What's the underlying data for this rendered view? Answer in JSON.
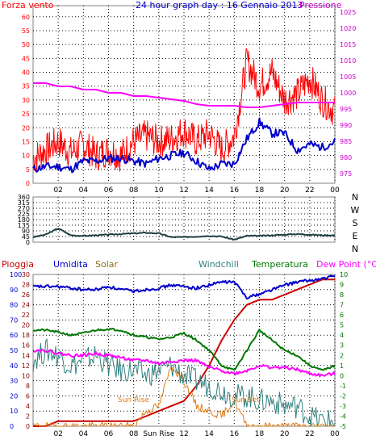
{
  "colors": {
    "wind": "#ff0000",
    "wind_dark": "#0000cc",
    "pressure": "#ff00ff",
    "dir": "#1f3f3f",
    "rain": "#cc0000",
    "humidity": "#0000cc",
    "solar": "#e07a10",
    "windchill": "#2f7f7f",
    "temp": "#007700",
    "dewpoint": "#ff00ff",
    "pressure_axis": "#cc00cc",
    "grid": "#000000",
    "frame": "#808080"
  },
  "chart_data": [
    {
      "type": "line",
      "title": "24 hour graph day : 16 Gennaio 2013",
      "left_label": "Forza vento",
      "right_label": "Pressione",
      "x_ticks": [
        "02",
        "04",
        "06",
        "08",
        "10",
        "12",
        "14",
        "16",
        "18",
        "20",
        "22",
        "00"
      ],
      "x": [
        0,
        1,
        2,
        3,
        4,
        5,
        6,
        7,
        8,
        9,
        10,
        11,
        12,
        13,
        14,
        15,
        16,
        17,
        18,
        19,
        20,
        21,
        22,
        23,
        24
      ],
      "ylim_left": [
        0,
        64
      ],
      "y_ticks_left": [
        0,
        5,
        10,
        15,
        20,
        25,
        30,
        35,
        40,
        45,
        50,
        55,
        60
      ],
      "ylim_right": [
        972,
        1027
      ],
      "y_ticks_right": [
        975,
        980,
        985,
        990,
        995,
        1000,
        1005,
        1010,
        1015,
        1020,
        1025
      ],
      "series": [
        {
          "axis": "left",
          "values": [
            9,
            12,
            15,
            11,
            14,
            10,
            12,
            10,
            15,
            17,
            15,
            16,
            19,
            15,
            18,
            12,
            17,
            44,
            35,
            40,
            30,
            32,
            38,
            30,
            26
          ]
        },
        {
          "axis": "left",
          "values": [
            5,
            6,
            6,
            5,
            8,
            8,
            9,
            9,
            8,
            7,
            9,
            10,
            11,
            8,
            5,
            7,
            7,
            16,
            22,
            18,
            18,
            12,
            14,
            13,
            15
          ]
        },
        {
          "axis": "right",
          "values": [
            1003,
            1003,
            1002,
            1002,
            1001,
            1001,
            1000,
            1000,
            999,
            999,
            998.5,
            998,
            997.5,
            996.5,
            996,
            996,
            996,
            995.5,
            995.5,
            996,
            996.5,
            997,
            997,
            997,
            997
          ]
        }
      ]
    },
    {
      "type": "line",
      "right_label": "N W S E N",
      "x_ticks": [
        "02",
        "04",
        "06",
        "08",
        "10",
        "12",
        "14",
        "16",
        "18",
        "20",
        "22",
        "00"
      ],
      "x": [
        0,
        1,
        2,
        3,
        4,
        5,
        6,
        7,
        8,
        9,
        10,
        11,
        12,
        13,
        14,
        15,
        16,
        17,
        18,
        19,
        20,
        21,
        22,
        23,
        24
      ],
      "ylim": [
        0,
        360
      ],
      "y_ticks": [
        0,
        45,
        90,
        135,
        180,
        225,
        270,
        315,
        360
      ],
      "series": [
        {
          "values": [
            40,
            60,
            110,
            55,
            50,
            55,
            60,
            65,
            70,
            75,
            70,
            40,
            40,
            45,
            50,
            45,
            20,
            50,
            50,
            55,
            60,
            65,
            60,
            55,
            55
          ]
        }
      ]
    },
    {
      "type": "line",
      "labels": [
        "Pioggia",
        "Umidita",
        "Solar",
        "Windchill",
        "Temperatura",
        "Dew Point (°C)"
      ],
      "x_ticks": [
        "02",
        "04",
        "06",
        "08",
        "Sun Rise",
        "12",
        "14",
        "16",
        "18",
        "20",
        "22",
        "00"
      ],
      "annotations": [
        "Sun Rise",
        "Sun Set"
      ],
      "x": [
        0,
        1,
        2,
        3,
        4,
        5,
        6,
        7,
        8,
        9,
        10,
        11,
        12,
        13,
        14,
        15,
        16,
        17,
        18,
        19,
        20,
        21,
        22,
        23,
        24
      ],
      "ylim_left": [
        0,
        100
      ],
      "y_ticks_left": [
        0,
        10,
        20,
        30,
        40,
        50,
        60,
        70,
        80,
        90,
        100
      ],
      "ylim_mid": [
        0,
        30
      ],
      "y_ticks_mid": [
        0,
        2,
        4,
        6,
        8,
        10,
        12,
        14,
        16,
        18,
        20,
        22,
        24,
        26,
        28,
        30
      ],
      "ylim_right": [
        -5,
        10
      ],
      "y_ticks_right": [
        -5,
        -4,
        -3,
        -2,
        -1,
        0,
        1,
        2,
        3,
        4,
        5,
        6,
        7,
        8,
        9,
        10
      ],
      "series": [
        {
          "axis": "mid",
          "values": [
            0,
            0,
            1,
            1,
            1,
            1,
            1,
            1,
            1,
            2,
            3,
            4,
            5,
            8,
            12,
            17,
            21,
            24,
            25,
            25,
            26,
            27,
            28,
            29,
            29
          ]
        },
        {
          "axis": "left",
          "values": [
            92,
            92,
            92,
            91,
            90,
            90,
            92,
            90,
            89,
            90,
            91,
            93,
            92,
            91,
            93,
            95,
            95,
            85,
            87,
            90,
            93,
            95,
            96,
            97,
            99
          ]
        },
        {
          "axis": "mid",
          "values": [
            0,
            0,
            0,
            0,
            0,
            0,
            0,
            0,
            0,
            3,
            4,
            12,
            9,
            4,
            3,
            2,
            5,
            0,
            0,
            0,
            0,
            0,
            0,
            0,
            0
          ]
        },
        {
          "axis": "right",
          "values": [
            1.5,
            2.5,
            2,
            1,
            1.5,
            2,
            1,
            0.5,
            0.5,
            0,
            0.5,
            1,
            0,
            -0.5,
            -1,
            -1.5,
            -2,
            -2,
            -2.5,
            -2.5,
            -3,
            -3,
            -4,
            -4.5,
            -4.5
          ]
        },
        {
          "axis": "right",
          "values": [
            4.5,
            4.5,
            4.3,
            4,
            4.2,
            4.5,
            4.6,
            4.5,
            4,
            3.8,
            3.6,
            3.8,
            4.2,
            3.5,
            2.5,
            1,
            0.5,
            2.5,
            4.5,
            3.5,
            2.5,
            2.0,
            1.0,
            0.5,
            1.0
          ]
        },
        {
          "axis": "right",
          "values": [
            2.5,
            2.5,
            2.2,
            2,
            2,
            2.2,
            2,
            1.8,
            1.5,
            1.5,
            1.2,
            1.4,
            1.5,
            1.5,
            0.8,
            0.5,
            0.2,
            0.5,
            1,
            0.8,
            0.8,
            0.6,
            0.2,
            0,
            0.2
          ]
        }
      ]
    }
  ]
}
